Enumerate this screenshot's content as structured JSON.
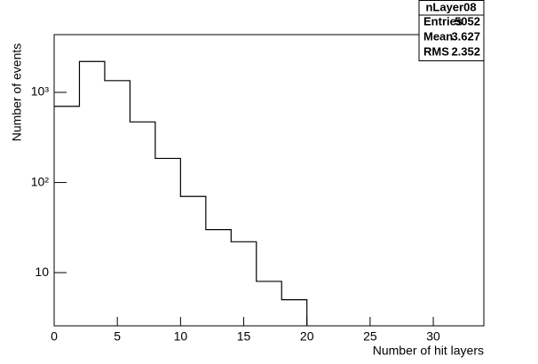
{
  "chart_data": {
    "type": "histogram",
    "stats": {
      "title": "nLayer08",
      "rows": [
        [
          "Entries",
          "5052"
        ],
        [
          "Mean",
          "3.627"
        ],
        [
          "RMS",
          "2.352"
        ]
      ]
    },
    "x_label": "Number of hit layers",
    "y_label": "Number of events",
    "bins": [
      0,
      2,
      4,
      6,
      8,
      10,
      12,
      14,
      16,
      18,
      20
    ],
    "values": [
      700,
      2200,
      1350,
      470,
      185,
      70,
      30,
      22,
      8,
      5
    ],
    "color": "#000000",
    "xlim": [
      0,
      34
    ],
    "xticks": [
      0,
      5,
      10,
      15,
      20,
      25,
      30
    ],
    "ylim": [
      2.57,
      4370
    ],
    "log_y": true,
    "yticks": [
      10,
      {
        "value": 100,
        "label": "10²"
      },
      {
        "value": 1000,
        "label": "10³"
      }
    ]
  }
}
